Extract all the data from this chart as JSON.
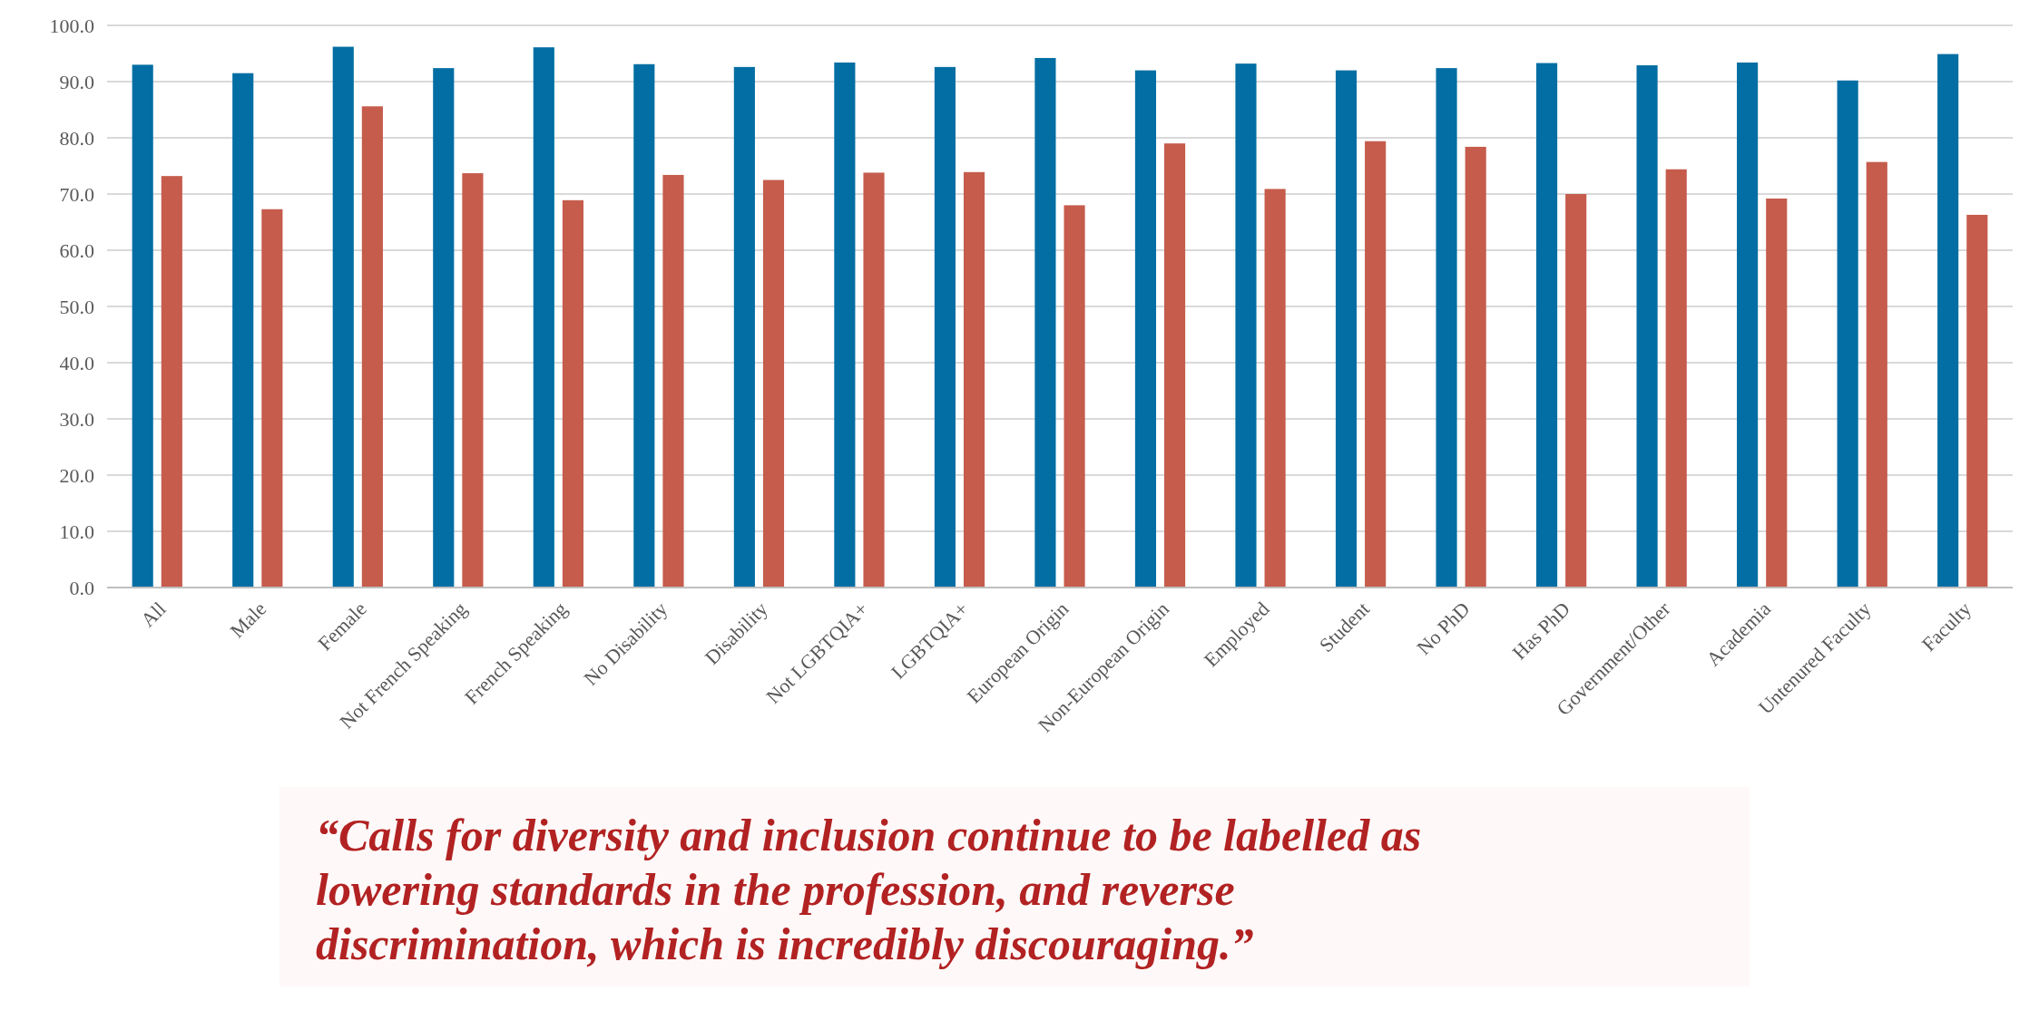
{
  "chart_data": {
    "type": "bar",
    "categories": [
      "All",
      "Male",
      "Female",
      "Not French Speaking",
      "French Speaking",
      "No Disability",
      "Disability",
      "Not LGBTQIA+",
      "LGBTQIA+",
      "European Origin",
      "Non-European Origin",
      "Employed",
      "Student",
      "No PhD",
      "Has PhD",
      "Government/Other",
      "Academia",
      "Untenured Faculty",
      "Faculty"
    ],
    "series": [
      {
        "color": "#036ea3",
        "values": [
          93.0,
          91.5,
          96.2,
          92.4,
          96.1,
          93.1,
          92.6,
          93.4,
          92.6,
          94.2,
          92.0,
          93.2,
          92.0,
          92.4,
          93.3,
          92.9,
          93.4,
          90.2,
          94.9
        ]
      },
      {
        "color": "#c55c4c",
        "values": [
          73.2,
          67.3,
          85.6,
          73.7,
          68.9,
          73.4,
          72.5,
          73.8,
          73.9,
          68.0,
          79.0,
          70.9,
          79.4,
          78.4,
          70.0,
          74.4,
          69.2,
          75.7,
          66.3
        ]
      }
    ],
    "ylim": [
      0,
      100
    ],
    "yticks": [
      {
        "value": 0,
        "label": "0.0"
      },
      {
        "value": 10,
        "label": "10.0"
      },
      {
        "value": 20,
        "label": "20.0"
      },
      {
        "value": 30,
        "label": "30.0"
      },
      {
        "value": 40,
        "label": "40.0"
      },
      {
        "value": 50,
        "label": "50.0"
      },
      {
        "value": 60,
        "label": "60.0"
      },
      {
        "value": 70,
        "label": "70.0"
      },
      {
        "value": 80,
        "label": "80.0"
      },
      {
        "value": 90,
        "label": "90.0"
      },
      {
        "value": 100,
        "label": "100.0"
      }
    ],
    "grid": "y",
    "annotations": [
      "“Calls for diversity and inclusion continue to be labelled as lowering standards in the profession, and reverse discrimination, which is incredibly discouraging.”"
    ]
  }
}
